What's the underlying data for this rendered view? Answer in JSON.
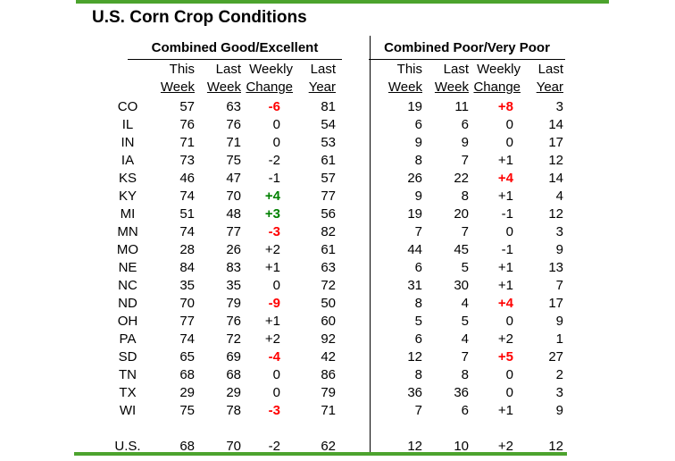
{
  "page": {
    "title": "U.S. Corn Crop Conditions"
  },
  "colors": {
    "accent_bar_green": "#4ca32d",
    "highlight_red": "#ff0000",
    "highlight_green": "#008000",
    "text": "#000000"
  },
  "chart_data": {
    "type": "table",
    "title": "U.S. Corn Crop Conditions",
    "sections": [
      "Combined Good/Excellent",
      "Combined Poor/Very Poor"
    ],
    "sub_columns": [
      [
        "This",
        "Week"
      ],
      [
        "Last",
        "Week"
      ],
      [
        "Weekly",
        "Change"
      ],
      [
        "Last",
        "Year"
      ]
    ],
    "rows": [
      {
        "state": "CO",
        "cells": [
          {
            "text": "57"
          },
          {
            "text": "63"
          },
          {
            "text": "-6",
            "color": "red"
          },
          {
            "text": "81"
          },
          {
            "text": "19"
          },
          {
            "text": "11"
          },
          {
            "text": "+8",
            "color": "red"
          },
          {
            "text": "3"
          }
        ]
      },
      {
        "state": "IL",
        "cells": [
          {
            "text": "76"
          },
          {
            "text": "76"
          },
          {
            "text": "0"
          },
          {
            "text": "54"
          },
          {
            "text": "6"
          },
          {
            "text": "6"
          },
          {
            "text": "0"
          },
          {
            "text": "14"
          }
        ]
      },
      {
        "state": "IN",
        "cells": [
          {
            "text": "71"
          },
          {
            "text": "71"
          },
          {
            "text": "0"
          },
          {
            "text": "53"
          },
          {
            "text": "9"
          },
          {
            "text": "9"
          },
          {
            "text": "0"
          },
          {
            "text": "17"
          }
        ]
      },
      {
        "state": "IA",
        "cells": [
          {
            "text": "73"
          },
          {
            "text": "75"
          },
          {
            "text": "-2"
          },
          {
            "text": "61"
          },
          {
            "text": "8"
          },
          {
            "text": "7"
          },
          {
            "text": "+1"
          },
          {
            "text": "12"
          }
        ]
      },
      {
        "state": "KS",
        "cells": [
          {
            "text": "46"
          },
          {
            "text": "47"
          },
          {
            "text": "-1"
          },
          {
            "text": "57"
          },
          {
            "text": "26"
          },
          {
            "text": "22"
          },
          {
            "text": "+4",
            "color": "red"
          },
          {
            "text": "14"
          }
        ]
      },
      {
        "state": "KY",
        "cells": [
          {
            "text": "74"
          },
          {
            "text": "70"
          },
          {
            "text": "+4",
            "color": "green"
          },
          {
            "text": "77"
          },
          {
            "text": "9"
          },
          {
            "text": "8"
          },
          {
            "text": "+1"
          },
          {
            "text": "4"
          }
        ]
      },
      {
        "state": "MI",
        "cells": [
          {
            "text": "51"
          },
          {
            "text": "48"
          },
          {
            "text": "+3",
            "color": "green"
          },
          {
            "text": "56"
          },
          {
            "text": "19"
          },
          {
            "text": "20"
          },
          {
            "text": "-1"
          },
          {
            "text": "12"
          }
        ]
      },
      {
        "state": "MN",
        "cells": [
          {
            "text": "74"
          },
          {
            "text": "77"
          },
          {
            "text": "-3",
            "color": "red"
          },
          {
            "text": "82"
          },
          {
            "text": "7"
          },
          {
            "text": "7"
          },
          {
            "text": "0"
          },
          {
            "text": "3"
          }
        ]
      },
      {
        "state": "MO",
        "cells": [
          {
            "text": "28"
          },
          {
            "text": "26"
          },
          {
            "text": "+2"
          },
          {
            "text": "61"
          },
          {
            "text": "44"
          },
          {
            "text": "45"
          },
          {
            "text": "-1"
          },
          {
            "text": "9"
          }
        ]
      },
      {
        "state": "NE",
        "cells": [
          {
            "text": "84"
          },
          {
            "text": "83"
          },
          {
            "text": "+1"
          },
          {
            "text": "63"
          },
          {
            "text": "6"
          },
          {
            "text": "5"
          },
          {
            "text": "+1"
          },
          {
            "text": "13"
          }
        ]
      },
      {
        "state": "NC",
        "cells": [
          {
            "text": "35"
          },
          {
            "text": "35"
          },
          {
            "text": "0"
          },
          {
            "text": "72"
          },
          {
            "text": "31"
          },
          {
            "text": "30"
          },
          {
            "text": "+1"
          },
          {
            "text": "7"
          }
        ]
      },
      {
        "state": "ND",
        "cells": [
          {
            "text": "70"
          },
          {
            "text": "79"
          },
          {
            "text": "-9",
            "color": "red"
          },
          {
            "text": "50"
          },
          {
            "text": "8"
          },
          {
            "text": "4"
          },
          {
            "text": "+4",
            "color": "red"
          },
          {
            "text": "17"
          }
        ]
      },
      {
        "state": "OH",
        "cells": [
          {
            "text": "77"
          },
          {
            "text": "76"
          },
          {
            "text": "+1"
          },
          {
            "text": "60"
          },
          {
            "text": "5"
          },
          {
            "text": "5"
          },
          {
            "text": "0"
          },
          {
            "text": "9"
          }
        ]
      },
      {
        "state": "PA",
        "cells": [
          {
            "text": "74"
          },
          {
            "text": "72"
          },
          {
            "text": "+2"
          },
          {
            "text": "92"
          },
          {
            "text": "6"
          },
          {
            "text": "4"
          },
          {
            "text": "+2"
          },
          {
            "text": "1"
          }
        ]
      },
      {
        "state": "SD",
        "cells": [
          {
            "text": "65"
          },
          {
            "text": "69"
          },
          {
            "text": "-4",
            "color": "red"
          },
          {
            "text": "42"
          },
          {
            "text": "12"
          },
          {
            "text": "7"
          },
          {
            "text": "+5",
            "color": "red"
          },
          {
            "text": "27"
          }
        ]
      },
      {
        "state": "TN",
        "cells": [
          {
            "text": "68"
          },
          {
            "text": "68"
          },
          {
            "text": "0"
          },
          {
            "text": "86"
          },
          {
            "text": "8"
          },
          {
            "text": "8"
          },
          {
            "text": "0"
          },
          {
            "text": "2"
          }
        ]
      },
      {
        "state": "TX",
        "cells": [
          {
            "text": "29"
          },
          {
            "text": "29"
          },
          {
            "text": "0"
          },
          {
            "text": "79"
          },
          {
            "text": "36"
          },
          {
            "text": "36"
          },
          {
            "text": "0"
          },
          {
            "text": "3"
          }
        ]
      },
      {
        "state": "WI",
        "cells": [
          {
            "text": "75"
          },
          {
            "text": "78"
          },
          {
            "text": "-3",
            "color": "red"
          },
          {
            "text": "71"
          },
          {
            "text": "7"
          },
          {
            "text": "6"
          },
          {
            "text": "+1"
          },
          {
            "text": "9"
          }
        ]
      }
    ],
    "us_row": {
      "state": "U.S.",
      "cells": [
        {
          "text": "68"
        },
        {
          "text": "70"
        },
        {
          "text": "-2"
        },
        {
          "text": "62"
        },
        {
          "text": "12"
        },
        {
          "text": "10"
        },
        {
          "text": "+2"
        },
        {
          "text": "12"
        }
      ]
    }
  }
}
